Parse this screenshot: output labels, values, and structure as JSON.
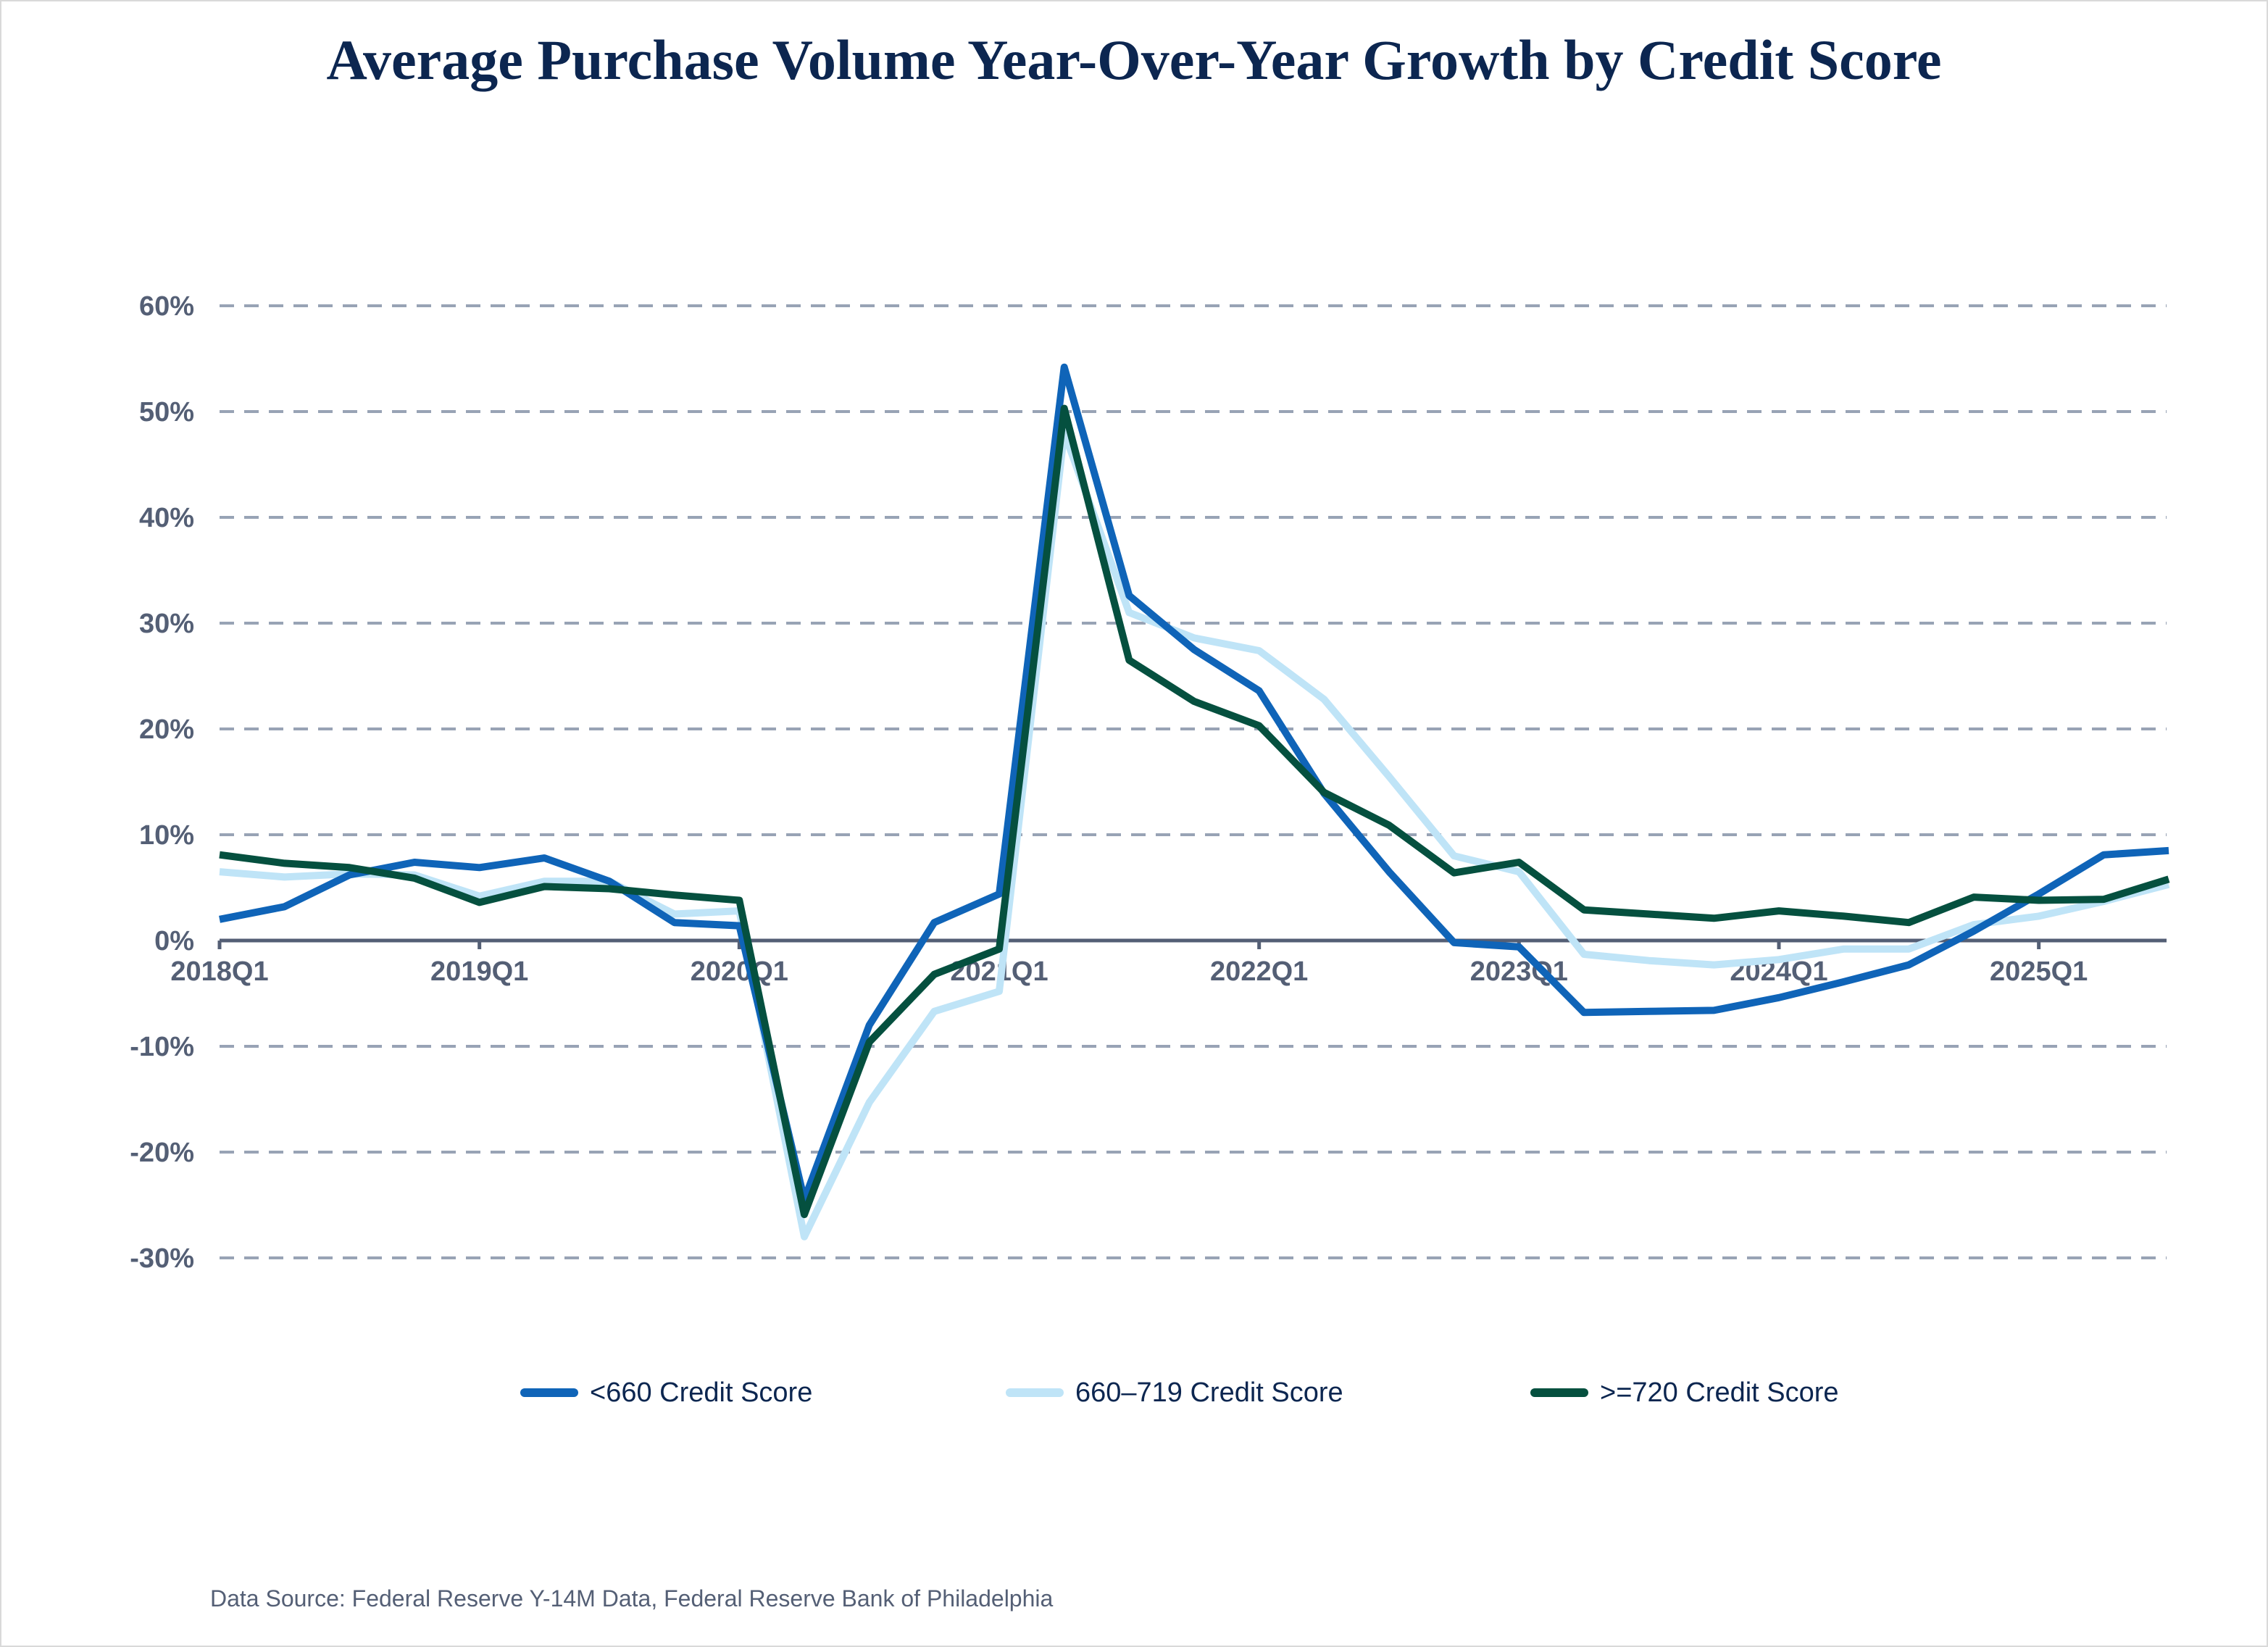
{
  "chart_data": {
    "type": "line",
    "title": "Average Purchase Volume Year-Over-Year Growth by Credit Score",
    "xlabel": "",
    "ylabel": "",
    "ylim": [
      -30,
      60
    ],
    "y_ticks": [
      60,
      50,
      40,
      30,
      20,
      10,
      0,
      -10,
      -20,
      -30
    ],
    "y_tick_labels": [
      "60%",
      "50%",
      "40%",
      "30%",
      "20%",
      "10%",
      "0%",
      "-10%",
      "-20%",
      "-30%"
    ],
    "x_tick_labels": [
      "2018Q1",
      "2019Q1",
      "2020Q1",
      "2021Q1",
      "2022Q1",
      "2023Q1",
      "2024Q1",
      "2025Q1"
    ],
    "grid": true,
    "legend_position": "bottom",
    "x": [
      "2018Q1",
      "2018Q2",
      "2018Q3",
      "2018Q4",
      "2019Q1",
      "2019Q2",
      "2019Q3",
      "2019Q4",
      "2020Q1",
      "2020Q2",
      "2020Q3",
      "2020Q4",
      "2021Q1",
      "2021Q2",
      "2021Q3",
      "2021Q4",
      "2022Q1",
      "2022Q2",
      "2022Q3",
      "2022Q4",
      "2023Q1",
      "2023Q2",
      "2023Q3",
      "2023Q4",
      "2024Q1",
      "2024Q2",
      "2024Q3",
      "2024Q4",
      "2025Q1",
      "2025Q2",
      "2025Q3"
    ],
    "series": [
      {
        "name": "<660 Credit Score",
        "color": "#0f64b8",
        "values": [
          2.0,
          3.2,
          6.2,
          7.4,
          6.9,
          7.8,
          5.6,
          1.7,
          1.4,
          -24.5,
          -8.0,
          1.7,
          4.4,
          54.2,
          32.6,
          27.5,
          23.6,
          13.9,
          6.5,
          -0.2,
          -0.6,
          -6.8,
          -6.7,
          -6.6,
          -5.4,
          -3.9,
          -2.3,
          0.9,
          4.4,
          8.1,
          8.5
        ]
      },
      {
        "name": "660–719 Credit Score",
        "color": "#bfe4f7",
        "values": [
          6.5,
          6.0,
          6.3,
          6.2,
          4.2,
          5.6,
          5.6,
          2.5,
          2.8,
          -28.0,
          -15.3,
          -6.7,
          -4.8,
          48.0,
          31.0,
          28.6,
          27.4,
          22.8,
          15.5,
          8.0,
          6.5,
          -1.3,
          -1.9,
          -2.3,
          -1.8,
          -0.8,
          -0.8,
          1.5,
          2.3,
          3.7,
          5.3
        ]
      },
      {
        "name": ">=720 Credit Score",
        "color": "#05503f",
        "values": [
          8.1,
          7.3,
          6.9,
          5.9,
          3.6,
          5.1,
          4.9,
          4.3,
          3.8,
          -25.9,
          -9.6,
          -3.2,
          -0.8,
          50.3,
          26.5,
          22.6,
          20.3,
          14.0,
          10.9,
          6.4,
          7.4,
          2.9,
          2.5,
          2.1,
          2.8,
          2.3,
          1.7,
          4.1,
          3.8,
          3.9,
          5.8
        ]
      }
    ]
  },
  "legend": {
    "items": [
      {
        "label": "<660 Credit Score",
        "color": "#0f64b8"
      },
      {
        "label": "660–719 Credit Score",
        "color": "#bfe4f7"
      },
      {
        "label": ">=720 Credit Score",
        "color": "#05503f"
      }
    ]
  },
  "source_note": "Data Source: Federal Reserve Y-14M Data, Federal Reserve Bank of Philadelphia",
  "colors": {
    "title": "#0c2650",
    "axis": "#545f75",
    "grid": "#98a3b5"
  }
}
